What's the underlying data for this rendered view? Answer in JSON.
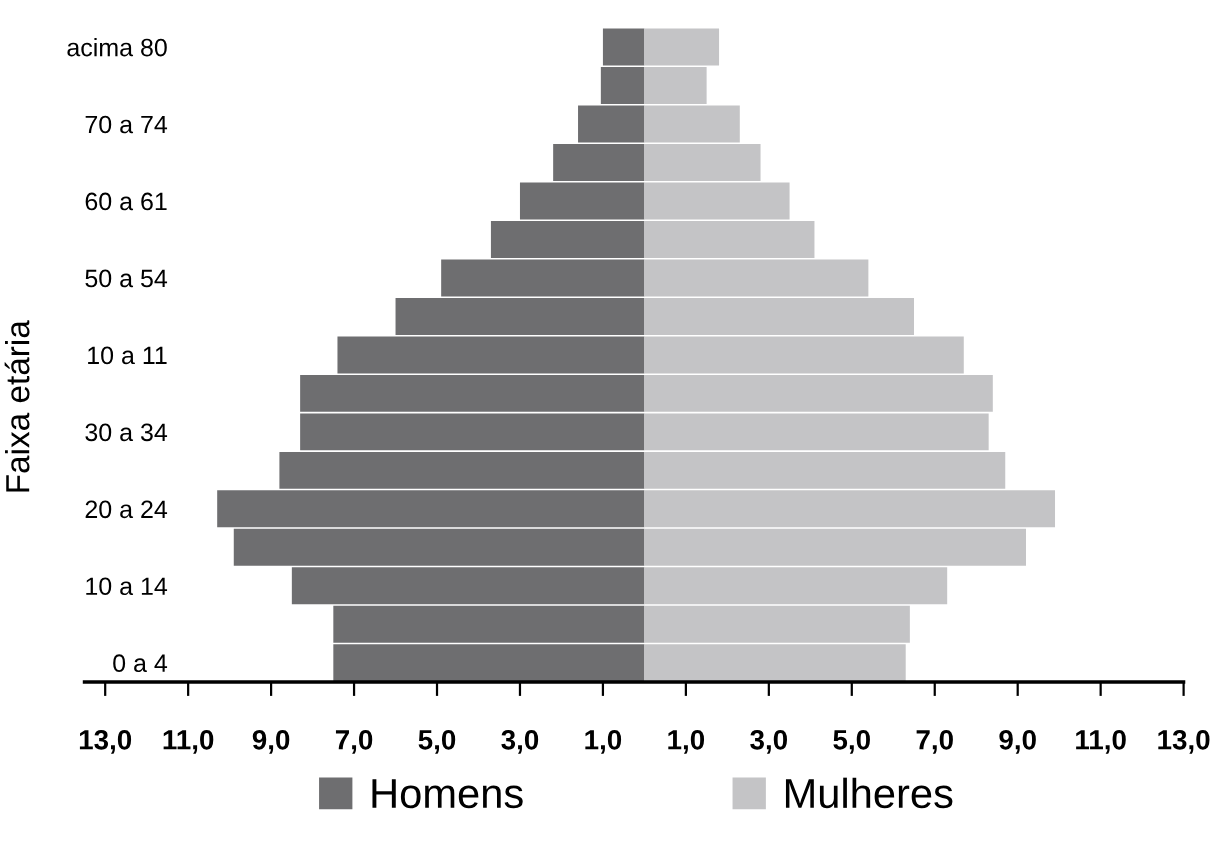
{
  "chart_data": {
    "type": "bar",
    "orientation": "horizontal",
    "ylabel": "Faixa etária",
    "categories": [
      "acima 80",
      null,
      "70 a 74",
      null,
      "60 a 61",
      null,
      "50 a 54",
      null,
      "10 a 11",
      null,
      "30 a 34",
      null,
      "20 a 24",
      null,
      "10 a 14",
      null,
      "0 a 4"
    ],
    "series": [
      {
        "name": "Homens",
        "color": "#6e6e70",
        "values": [
          -1.0,
          -1.05,
          -1.6,
          -2.2,
          -3.0,
          -3.7,
          -4.9,
          -6.0,
          -7.4,
          -8.3,
          -8.3,
          -8.8,
          -10.3,
          -9.9,
          -8.5,
          -7.5,
          -7.5
        ]
      },
      {
        "name": "Mulheres",
        "color": "#c4c4c6",
        "values": [
          1.8,
          1.5,
          2.3,
          2.8,
          3.5,
          4.1,
          5.4,
          6.5,
          7.7,
          8.4,
          8.3,
          8.7,
          9.9,
          9.2,
          7.3,
          6.4,
          6.3
        ]
      }
    ],
    "xlim": [
      -13.5,
      13
    ],
    "xticks": [
      {
        "value": -13,
        "label": "13,0"
      },
      {
        "value": -11,
        "label": "11,0"
      },
      {
        "value": -9,
        "label": "9,0"
      },
      {
        "value": -7,
        "label": "7,0"
      },
      {
        "value": -5,
        "label": "5,0"
      },
      {
        "value": -3,
        "label": "3,0"
      },
      {
        "value": -1,
        "label": "1,0"
      },
      {
        "value": 1,
        "label": "1,0"
      },
      {
        "value": 3,
        "label": "3,0"
      },
      {
        "value": 5,
        "label": "5,0"
      },
      {
        "value": 7,
        "label": "7,0"
      },
      {
        "value": 9,
        "label": "9,0"
      },
      {
        "value": 11,
        "label": "11,0"
      },
      {
        "value": 13,
        "label": "13,0"
      }
    ],
    "grid": false,
    "stacked": true,
    "legend": "bottom"
  }
}
